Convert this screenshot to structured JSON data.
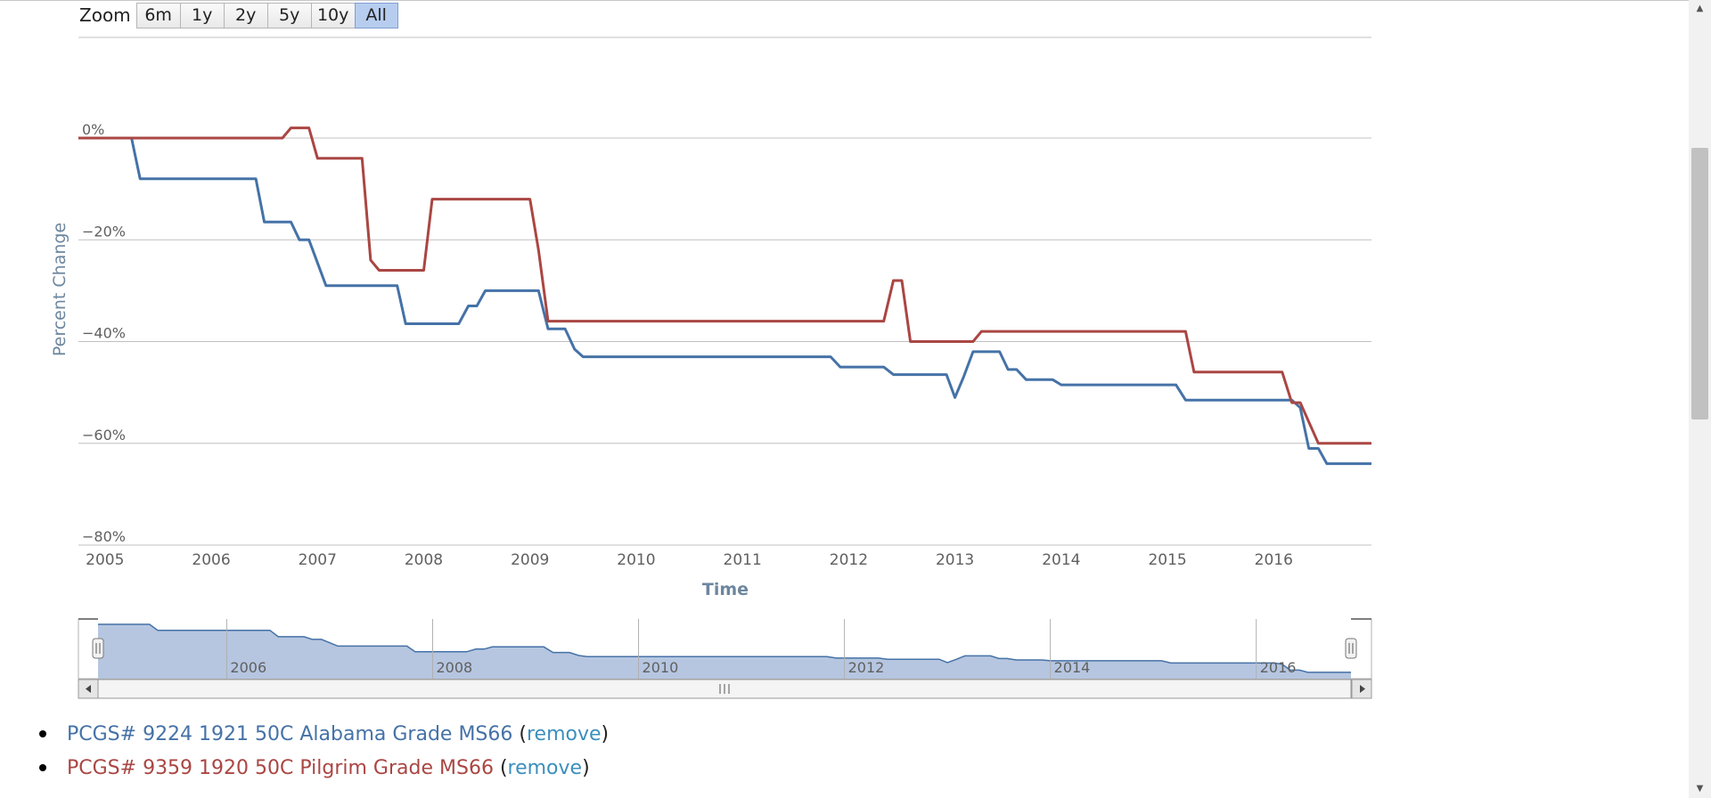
{
  "zoom": {
    "label": "Zoom",
    "buttons": [
      "6m",
      "1y",
      "2y",
      "5y",
      "10y",
      "All"
    ],
    "active": "All"
  },
  "colors": {
    "series1": "#4572a7",
    "series2": "#aa4643",
    "navigator_fill": "#b6c6e0"
  },
  "chart_data": {
    "type": "line",
    "title": "",
    "xlabel": "Time",
    "ylabel": "Percent Change",
    "xlim": [
      2004.75,
      2016.92
    ],
    "ylim": [
      -80,
      20
    ],
    "y_ticks": [
      0,
      -20,
      -40,
      -60,
      -80
    ],
    "y_tick_labels": [
      "0%",
      "−20%",
      "−40%",
      "−60%",
      "−80%"
    ],
    "x_ticks": [
      2005,
      2006,
      2007,
      2008,
      2009,
      2010,
      2011,
      2012,
      2013,
      2014,
      2015,
      2016
    ],
    "grid": true,
    "legend": "bottom list",
    "series": [
      {
        "name": "PCGS# 9224 1921 50C Alabama Grade MS66",
        "points": [
          [
            2004.75,
            0
          ],
          [
            2005.25,
            0
          ],
          [
            2005.33,
            -8
          ],
          [
            2006.42,
            -8
          ],
          [
            2006.5,
            -16.5
          ],
          [
            2006.75,
            -16.5
          ],
          [
            2006.83,
            -20
          ],
          [
            2006.92,
            -20
          ],
          [
            2007.08,
            -29
          ],
          [
            2007.75,
            -29
          ],
          [
            2007.83,
            -36.5
          ],
          [
            2008.33,
            -36.5
          ],
          [
            2008.42,
            -33
          ],
          [
            2008.5,
            -33
          ],
          [
            2008.58,
            -30
          ],
          [
            2009.08,
            -30
          ],
          [
            2009.17,
            -37.5
          ],
          [
            2009.33,
            -37.5
          ],
          [
            2009.42,
            -41.5
          ],
          [
            2009.5,
            -43
          ],
          [
            2011.83,
            -43
          ],
          [
            2011.92,
            -45
          ],
          [
            2012.33,
            -45
          ],
          [
            2012.42,
            -46.5
          ],
          [
            2012.92,
            -46.5
          ],
          [
            2013.0,
            -51
          ],
          [
            2013.08,
            -47
          ],
          [
            2013.17,
            -42
          ],
          [
            2013.42,
            -42
          ],
          [
            2013.5,
            -45.5
          ],
          [
            2013.58,
            -45.5
          ],
          [
            2013.67,
            -47.5
          ],
          [
            2013.92,
            -47.5
          ],
          [
            2014.0,
            -48.5
          ],
          [
            2015.08,
            -48.5
          ],
          [
            2015.17,
            -51.5
          ],
          [
            2016.17,
            -51.5
          ],
          [
            2016.25,
            -53
          ],
          [
            2016.33,
            -61
          ],
          [
            2016.42,
            -61
          ],
          [
            2016.5,
            -64
          ],
          [
            2016.92,
            -64
          ]
        ]
      },
      {
        "name": "PCGS# 9359 1920 50C Pilgrim Grade MS66",
        "points": [
          [
            2004.75,
            0
          ],
          [
            2006.67,
            0
          ],
          [
            2006.75,
            2
          ],
          [
            2006.92,
            2
          ],
          [
            2007.0,
            -4
          ],
          [
            2007.42,
            -4
          ],
          [
            2007.5,
            -24
          ],
          [
            2007.58,
            -26
          ],
          [
            2008.0,
            -26
          ],
          [
            2008.08,
            -12
          ],
          [
            2009.0,
            -12
          ],
          [
            2009.08,
            -22
          ],
          [
            2009.17,
            -36
          ],
          [
            2012.33,
            -36
          ],
          [
            2012.42,
            -28
          ],
          [
            2012.5,
            -28
          ],
          [
            2012.58,
            -40
          ],
          [
            2013.17,
            -40
          ],
          [
            2013.25,
            -38
          ],
          [
            2015.17,
            -38
          ],
          [
            2015.25,
            -46
          ],
          [
            2016.08,
            -46
          ],
          [
            2016.17,
            -52
          ],
          [
            2016.25,
            -52
          ],
          [
            2016.42,
            -60
          ],
          [
            2016.92,
            -60
          ]
        ]
      }
    ],
    "navigator": {
      "tick_labels": [
        "2006",
        "2008",
        "2010",
        "2012",
        "2014",
        "2016"
      ],
      "ticks": [
        2006,
        2008,
        2010,
        2012,
        2014,
        2016
      ],
      "xlim": [
        2004.75,
        2016.92
      ]
    }
  },
  "legend": {
    "items": [
      {
        "text": "PCGS# 9224 1921 50C Alabama Grade MS66",
        "remove": "remove"
      },
      {
        "text": "PCGS# 9359 1920 50C Pilgrim Grade MS66",
        "remove": "remove"
      }
    ]
  }
}
